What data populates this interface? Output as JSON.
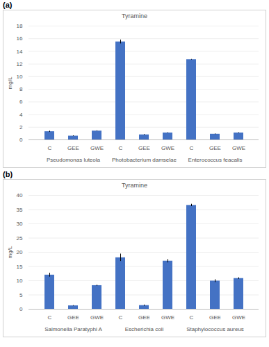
{
  "chart_data": [
    {
      "type": "bar",
      "panel_label": "(a)",
      "title": "Tyramine",
      "y_label": "mg/L",
      "categories": [
        "C",
        "GEE",
        "GWE",
        "C",
        "GEE",
        "GWE",
        "C",
        "GEE",
        "GWE"
      ],
      "groups": [
        "Pseudomonas luteola",
        "Photobacterium damselae",
        "Enterococcus feacalis"
      ],
      "values": [
        1.3,
        0.6,
        1.4,
        15.5,
        0.8,
        1.1,
        12.7,
        0.9,
        1.1
      ],
      "errors": [
        0.1,
        0.05,
        0.05,
        0.3,
        0.05,
        0.05,
        0.05,
        0.05,
        0.05
      ],
      "color": "#4472c4",
      "ylim": [
        0,
        18
      ],
      "yticks": [
        0,
        2,
        4,
        6,
        8,
        10,
        12,
        14,
        16,
        18
      ],
      "grid": true
    },
    {
      "type": "bar",
      "panel_label": "(b)",
      "title": "Tyramine",
      "y_label": "mg/L",
      "categories": [
        "C",
        "GEE",
        "GWE",
        "C",
        "GEE",
        "GWE",
        "C",
        "GEE",
        "GWE"
      ],
      "groups": [
        "Salmonella Paratyphi A",
        "Escherichia coli",
        "Staphylococcus aureus"
      ],
      "values": [
        12.0,
        1.2,
        8.3,
        18.1,
        1.3,
        16.9,
        36.5,
        9.9,
        10.8
      ],
      "errors": [
        0.7,
        0.1,
        0.2,
        1.3,
        0.2,
        0.6,
        0.4,
        0.5,
        0.3
      ],
      "color": "#4472c4",
      "ylim": [
        0,
        40
      ],
      "yticks": [
        0,
        5,
        10,
        15,
        20,
        25,
        30,
        35,
        40
      ],
      "grid": true
    }
  ]
}
